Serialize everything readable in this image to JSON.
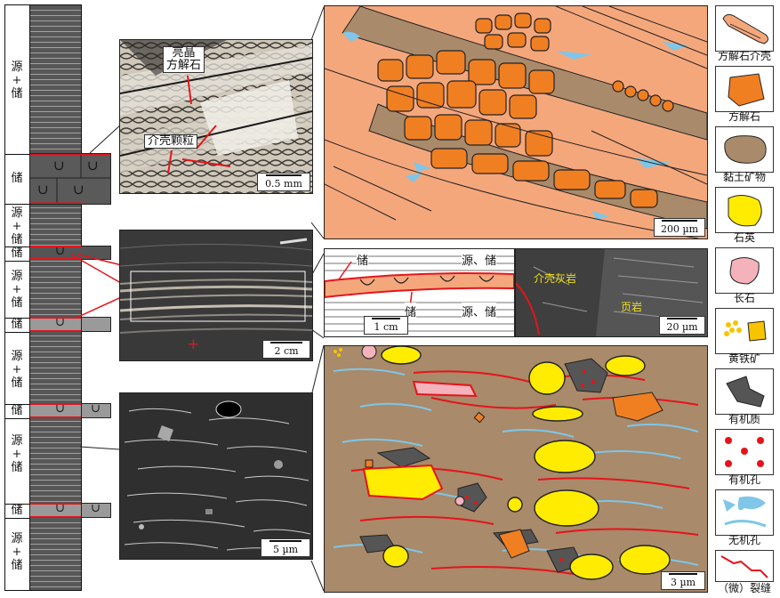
{
  "column": {
    "labels": [
      {
        "text": "源+储"
      },
      {
        "text": "储"
      },
      {
        "text": "源+储"
      },
      {
        "text": "储"
      },
      {
        "text": "源+储"
      },
      {
        "text": "储"
      },
      {
        "text": "源+储"
      },
      {
        "text": "储"
      },
      {
        "text": "源+储"
      },
      {
        "text": "储"
      },
      {
        "text": "源+储"
      }
    ],
    "shell_symbol": "∪"
  },
  "photo1": {
    "callout_crystal": "亮晶\n方解石",
    "callout_shell": "介壳颗粒",
    "scale": "0.5 mm"
  },
  "photo2": {
    "scale": "2 cm"
  },
  "photo3": {
    "scale": "5 µm"
  },
  "sketch1": {
    "scale": "200 µm"
  },
  "strip": {
    "label_store_top": "储",
    "label_source_store_top": "源、储",
    "label_store_bottom": "储",
    "label_source_store_bottom": "源、储",
    "scale": "1 cm"
  },
  "sem": {
    "label_shell_limestone": "介壳灰岩",
    "label_shale": "页岩",
    "scale": "20 µm"
  },
  "sketch2": {
    "scale": "3 µm"
  },
  "legend": [
    {
      "icon": "calcite-shell-icon",
      "label": "方解石介壳"
    },
    {
      "icon": "calcite-icon",
      "label": "方解石"
    },
    {
      "icon": "clay-mineral-icon",
      "label": "黏土矿物"
    },
    {
      "icon": "quartz-icon",
      "label": "石英"
    },
    {
      "icon": "feldspar-icon",
      "label": "长石"
    },
    {
      "icon": "pyrite-icon",
      "label": "黄铁矿"
    },
    {
      "icon": "organic-matter-icon",
      "label": "有机质"
    },
    {
      "icon": "organic-pore-icon",
      "label": "有机孔"
    },
    {
      "icon": "inorganic-pore-icon",
      "label": "无机孔"
    },
    {
      "icon": "microfracture-icon",
      "label": "（微）裂缝"
    }
  ],
  "colors": {
    "shell": "#f5a77c",
    "calcite": "#f07f22",
    "clay": "#a98a6a",
    "quartz": "#ffec00",
    "feldspar": "#f4b2bb",
    "organic": "#555555",
    "pore": "#e5141b",
    "inorganic": "#7fc6e8",
    "fracture": "#e5141b"
  }
}
